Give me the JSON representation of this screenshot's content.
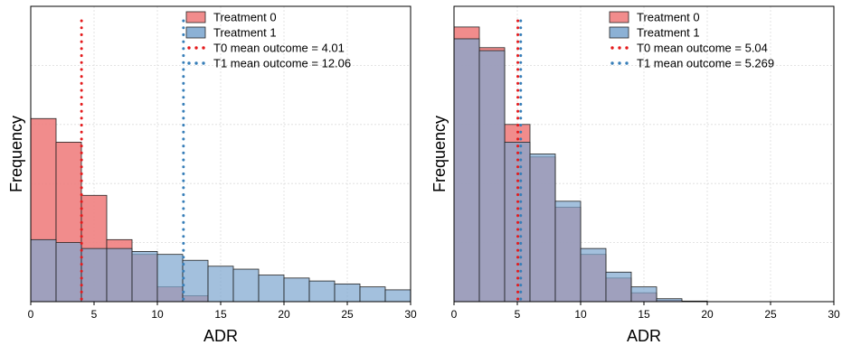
{
  "chart_data": [
    {
      "type": "histogram",
      "xlabel": "ADR",
      "ylabel": "Frequency",
      "xlim": [
        0,
        30
      ],
      "ylim": [
        0,
        1
      ],
      "y_tick_labels": "none",
      "grid": true,
      "legend_placement": "top-right",
      "bin_width": 2,
      "bin_starts": [
        0,
        2,
        4,
        6,
        8,
        10,
        12,
        14,
        16,
        18,
        20,
        22,
        24,
        26,
        28
      ],
      "x_ticks": [
        0,
        5,
        10,
        15,
        20,
        25,
        30
      ],
      "series": [
        {
          "name": "Treatment 0",
          "color": "#f08080",
          "values": [
            0.62,
            0.54,
            0.36,
            0.21,
            0.16,
            0.05,
            0.02,
            0.0,
            0.0,
            0.0,
            0.0,
            0.0,
            0.0,
            0.0,
            0.0
          ]
        },
        {
          "name": "Treatment 1",
          "color": "#7fa8d0",
          "values": [
            0.21,
            0.2,
            0.18,
            0.18,
            0.17,
            0.16,
            0.14,
            0.12,
            0.11,
            0.09,
            0.08,
            0.07,
            0.06,
            0.05,
            0.04
          ]
        }
      ],
      "mean_lines": [
        {
          "name": "T0 mean outcome = 4.01",
          "value": 4.01,
          "color": "#e41a1c"
        },
        {
          "name": "T1 mean outcome = 12.06",
          "value": 12.06,
          "color": "#377eb8"
        }
      ]
    },
    {
      "type": "histogram",
      "xlabel": "ADR",
      "ylabel": "Frequency",
      "xlim": [
        0,
        30
      ],
      "ylim": [
        0,
        1
      ],
      "y_tick_labels": "none",
      "grid": true,
      "legend_placement": "top-right",
      "bin_width": 2,
      "bin_starts": [
        0,
        2,
        4,
        6,
        8,
        10,
        12,
        14,
        16,
        18,
        20,
        22,
        24,
        26,
        28
      ],
      "x_ticks": [
        0,
        5,
        10,
        15,
        20,
        25,
        30
      ],
      "series": [
        {
          "name": "Treatment 0",
          "color": "#f08080",
          "values": [
            0.93,
            0.86,
            0.6,
            0.49,
            0.32,
            0.16,
            0.08,
            0.03,
            0.005,
            0.001,
            0.0,
            0.0,
            0.0,
            0.0,
            0.0
          ]
        },
        {
          "name": "Treatment 1",
          "color": "#7fa8d0",
          "values": [
            0.89,
            0.85,
            0.54,
            0.5,
            0.34,
            0.18,
            0.1,
            0.05,
            0.01,
            0.002,
            0.0,
            0.0,
            0.0,
            0.0,
            0.0
          ]
        }
      ],
      "mean_lines": [
        {
          "name": "T0 mean outcome = 5.04",
          "value": 5.04,
          "color": "#e41a1c"
        },
        {
          "name": "T1 mean outcome = 5.269",
          "value": 5.269,
          "color": "#377eb8"
        }
      ]
    }
  ]
}
